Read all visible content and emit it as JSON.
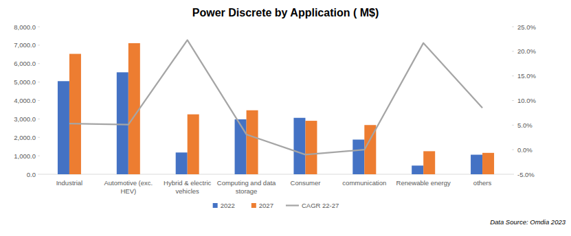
{
  "chart_data": {
    "type": "bar",
    "title": "Power Discrete by Application ( M$)",
    "categories": [
      "Industrial",
      "Automotive (exc. HEV)",
      "Hybrid & electric vehicles",
      "Computing and data storage",
      "Consumer",
      "communication",
      "Renewable energy",
      "others"
    ],
    "series": [
      {
        "name": "2022",
        "color": "#4472c4",
        "type": "bar",
        "values": [
          5050,
          5530,
          1180,
          2980,
          3060,
          1880,
          470,
          1060
        ]
      },
      {
        "name": "2027",
        "color": "#ed7d31",
        "type": "bar",
        "values": [
          6530,
          7110,
          3250,
          3470,
          2900,
          2670,
          1250,
          1160
        ]
      },
      {
        "name": "CAGR 22-27",
        "color": "#a5a5a5",
        "type": "line",
        "axis": "y2",
        "values": [
          5.3,
          5.1,
          22.3,
          3.1,
          -1.0,
          0.0,
          21.7,
          8.5
        ]
      }
    ],
    "ylim": [
      0,
      8000
    ],
    "yticks": [
      {
        "value": 0,
        "label": "0.0"
      },
      {
        "value": 1000,
        "label": "1,000.0"
      },
      {
        "value": 2000,
        "label": "2,000.0"
      },
      {
        "value": 3000,
        "label": "3,000.0"
      },
      {
        "value": 4000,
        "label": "4,000.0"
      },
      {
        "value": 5000,
        "label": "5,000.0"
      },
      {
        "value": 6000,
        "label": "6,000.0"
      },
      {
        "value": 7000,
        "label": "7,000.0"
      },
      {
        "value": 8000,
        "label": "8,000.0"
      }
    ],
    "y2lim": [
      -5,
      25
    ],
    "y2ticks": [
      {
        "value": -5,
        "label": "-5.0%"
      },
      {
        "value": 0,
        "label": "0.0%"
      },
      {
        "value": 5,
        "label": "5.0%"
      },
      {
        "value": 10,
        "label": "10.0%"
      },
      {
        "value": 15,
        "label": "15.0%"
      },
      {
        "value": 20,
        "label": "20.0%"
      },
      {
        "value": 25,
        "label": "25.0%"
      }
    ],
    "grid": false,
    "legend": "bottom",
    "annotations": [
      "Data Source: Omdia 2023"
    ]
  }
}
